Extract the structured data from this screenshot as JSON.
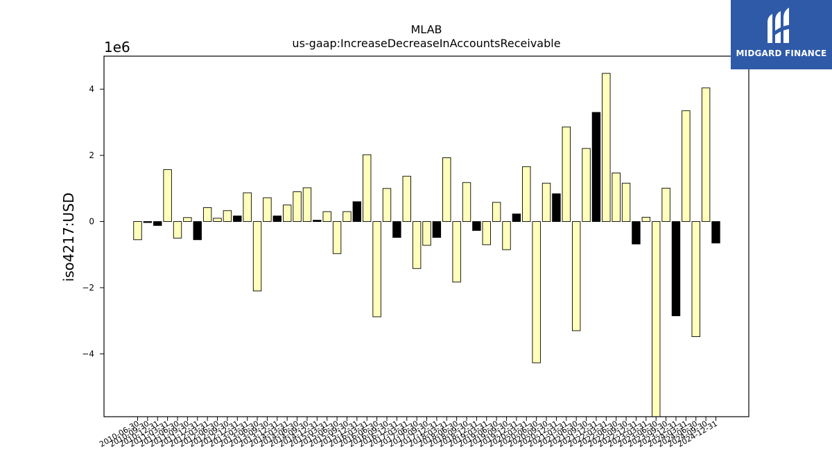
{
  "chart_data": {
    "type": "bar",
    "title": "MLAB",
    "subtitle": "us-gaap:IncreaseDecreaseInAccountsReceivable",
    "ylabel": "iso4217:USD",
    "xlabel": "",
    "y_multiplier_label": "1e6",
    "y_ticks": [
      -4,
      -2,
      0,
      2,
      4
    ],
    "y_tick_labels": [
      "−4",
      "−2",
      "0",
      "2",
      "4"
    ],
    "ylim": [
      -5.9,
      5.0
    ],
    "grid": false,
    "colors": {
      "yellow": "#ffffbb",
      "black": "#000000",
      "edge": "#000000"
    },
    "categories": [
      "2010-06-30",
      "2010-09-30",
      "2010-12-31",
      "2011-03-31",
      "2011-06-30",
      "2011-09-30",
      "2011-12-31",
      "2012-03-31",
      "2012-06-30",
      "2012-09-30",
      "2012-12-31",
      "2013-03-31",
      "2013-06-30",
      "2013-09-30",
      "2013-12-31",
      "2014-03-31",
      "2014-06-30",
      "2014-09-30",
      "2014-12-31",
      "2015-03-31",
      "2015-06-30",
      "2015-09-30",
      "2015-12-31",
      "2016-03-31",
      "2016-06-30",
      "2016-09-30",
      "2016-12-31",
      "2017-03-31",
      "2017-06-30",
      "2017-09-30",
      "2017-12-31",
      "2018-03-31",
      "2018-06-30",
      "2018-09-30",
      "2018-12-31",
      "2019-03-31",
      "2019-06-30",
      "2019-09-30",
      "2019-12-31",
      "2020-03-31",
      "2020-06-30",
      "2020-09-30",
      "2020-12-31",
      "2021-03-31",
      "2021-06-30",
      "2021-09-30",
      "2021-12-31",
      "2022-03-31",
      "2022-06-30",
      "2022-09-30",
      "2022-12-31",
      "2023-03-31",
      "2023-06-30",
      "2023-09-30",
      "2023-12-31",
      "2024-03-31",
      "2024-06-30",
      "2024-09-30",
      "2024-12-31"
    ],
    "values": [
      -0.55,
      -0.03,
      -0.12,
      1.57,
      -0.5,
      0.12,
      -0.55,
      0.42,
      0.1,
      0.33,
      0.17,
      0.87,
      -2.1,
      0.72,
      0.17,
      0.5,
      0.9,
      1.02,
      0.04,
      0.3,
      -0.97,
      0.3,
      0.6,
      2.02,
      -2.88,
      1.0,
      -0.48,
      1.37,
      -1.42,
      -0.72,
      -0.48,
      1.93,
      -1.83,
      1.18,
      -0.27,
      -0.7,
      0.58,
      -0.85,
      0.23,
      1.66,
      -4.27,
      1.16,
      0.84,
      2.86,
      -3.3,
      2.21,
      3.3,
      4.48,
      1.47,
      1.16,
      -0.68,
      0.13,
      -6.2,
      1.01,
      -2.85,
      3.35,
      -3.48,
      4.04,
      -0.65
    ],
    "bar_colors": [
      "yellow",
      "black",
      "black",
      "yellow",
      "yellow",
      "yellow",
      "black",
      "yellow",
      "yellow",
      "yellow",
      "black",
      "yellow",
      "yellow",
      "yellow",
      "black",
      "yellow",
      "yellow",
      "yellow",
      "black",
      "yellow",
      "yellow",
      "yellow",
      "black",
      "yellow",
      "yellow",
      "yellow",
      "black",
      "yellow",
      "yellow",
      "yellow",
      "black",
      "yellow",
      "yellow",
      "yellow",
      "black",
      "yellow",
      "yellow",
      "yellow",
      "black",
      "yellow",
      "yellow",
      "yellow",
      "black",
      "yellow",
      "yellow",
      "yellow",
      "black",
      "yellow",
      "yellow",
      "yellow",
      "black",
      "yellow",
      "yellow",
      "yellow",
      "black",
      "yellow",
      "yellow",
      "yellow",
      "black"
    ]
  },
  "logo": {
    "text": "MIDGARD FINANCE",
    "icon": "midgard-logo-icon",
    "background": "#2e5aa8"
  }
}
